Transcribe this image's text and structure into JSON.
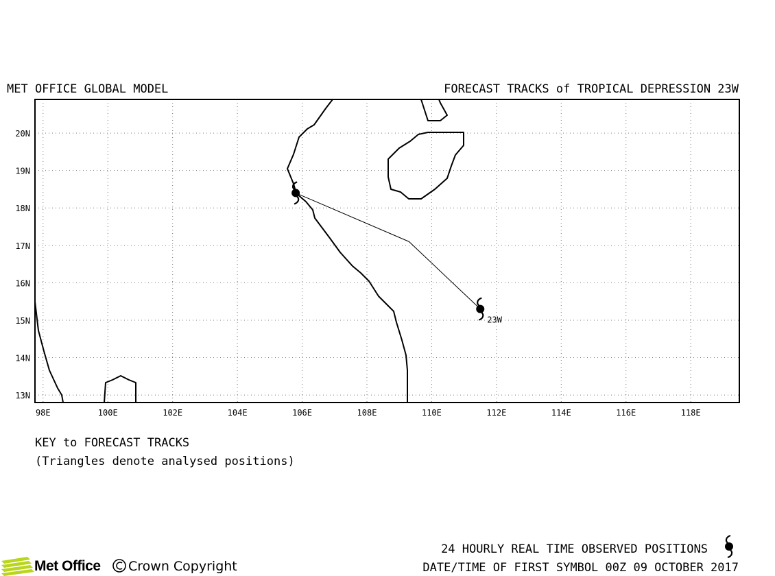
{
  "header": {
    "model_title": "MET OFFICE GLOBAL MODEL",
    "forecast_title": "FORECAST TRACKS of TROPICAL DEPRESSION 23W"
  },
  "map": {
    "lon_range": [
      97.75,
      119.5
    ],
    "lat_range": [
      12.8,
      20.9
    ],
    "lon_ticks": [
      "98E",
      "100E",
      "102E",
      "104E",
      "106E",
      "108E",
      "110E",
      "112E",
      "114E",
      "116E",
      "118E"
    ],
    "lat_ticks": [
      "13N",
      "14N",
      "15N",
      "16N",
      "17N",
      "18N",
      "19N",
      "20N"
    ],
    "grid": "dotted",
    "track": {
      "label": "23W",
      "points": [
        {
          "lon": 111.5,
          "lat": 15.3
        },
        {
          "lon": 109.3,
          "lat": 17.1
        },
        {
          "lon": 105.8,
          "lat": 18.4
        }
      ]
    },
    "storm_symbols": [
      {
        "lon": 111.5,
        "lat": 15.3,
        "label": "23W"
      },
      {
        "lon": 105.8,
        "lat": 18.4,
        "label": ""
      }
    ]
  },
  "key": {
    "title": "KEY to FORECAST TRACKS",
    "note": "(Triangles denote analysed positions)"
  },
  "footer": {
    "observed_label": "24 HOURLY REAL TIME OBSERVED POSITIONS",
    "datetime_label": "DATE/TIME OF FIRST SYMBOL 00Z 09 OCTOBER 2017",
    "logo_text": "Met Office",
    "copyright_text": "Crown Copyright",
    "logo_color": "#b9d51c"
  }
}
